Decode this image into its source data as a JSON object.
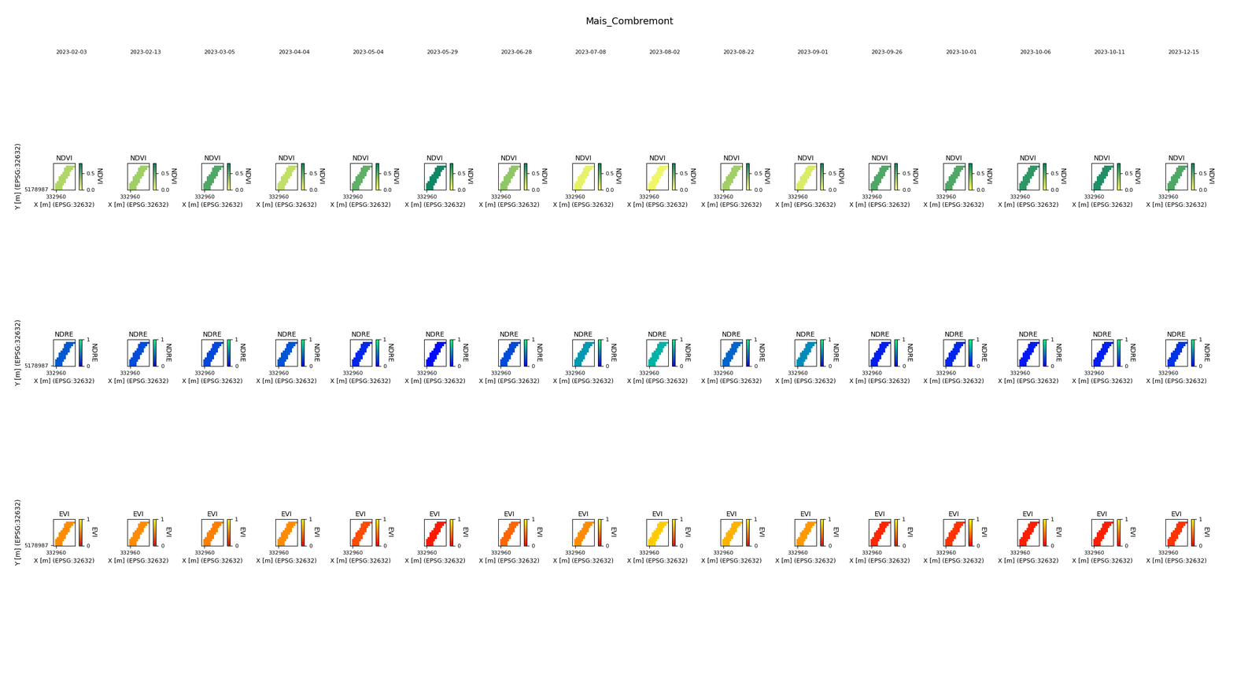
{
  "chart_data": {
    "type": "image",
    "title": "Mais_Combremont",
    "dates": [
      "2023-02-03",
      "2023-02-13",
      "2023-03-05",
      "2023-04-04",
      "2023-05-04",
      "2023-05-29",
      "2023-06-28",
      "2023-07-08",
      "2023-08-02",
      "2023-08-22",
      "2023-09-01",
      "2023-09-26",
      "2023-10-01",
      "2023-10-06",
      "2023-10-11",
      "2023-12-15"
    ],
    "x_label": "X [m] (EPSG:32632)",
    "y_label": "Y [m] (EPSG:32632)",
    "xlim": [
      332950,
      333030
    ],
    "xticks": [
      332960
    ],
    "ylim": [
      5178985,
      5179065
    ],
    "yticks": [
      5178987
    ],
    "rows": [
      {
        "name": "NDVI",
        "color": "summer_r",
        "clim": [
          0,
          0.8
        ],
        "cticks": [
          {
            "value": 0,
            "label": "0.0"
          },
          {
            "value": 0.5,
            "label": "0.5"
          }
        ],
        "values": [
          0.25,
          0.3,
          0.55,
          0.2,
          0.5,
          0.75,
          0.35,
          0.08,
          0.05,
          0.3,
          0.12,
          0.55,
          0.55,
          0.65,
          0.7,
          0.55
        ]
      },
      {
        "name": "NDRE",
        "color": "winter",
        "clim": [
          0,
          1
        ],
        "cticks": [
          0,
          1
        ],
        "values": [
          0.35,
          0.3,
          0.28,
          0.33,
          0.15,
          0.05,
          0.3,
          0.6,
          0.7,
          0.4,
          0.55,
          0.12,
          0.15,
          0.1,
          0.12,
          0.2
        ]
      },
      {
        "name": "EVI",
        "color": "autumn",
        "clim": [
          0,
          1
        ],
        "cticks": [
          0,
          1
        ],
        "values": [
          0.55,
          0.55,
          0.5,
          0.55,
          0.3,
          0.1,
          0.4,
          0.55,
          0.8,
          0.7,
          0.6,
          0.15,
          0.2,
          0.12,
          0.12,
          0.2
        ]
      }
    ]
  }
}
